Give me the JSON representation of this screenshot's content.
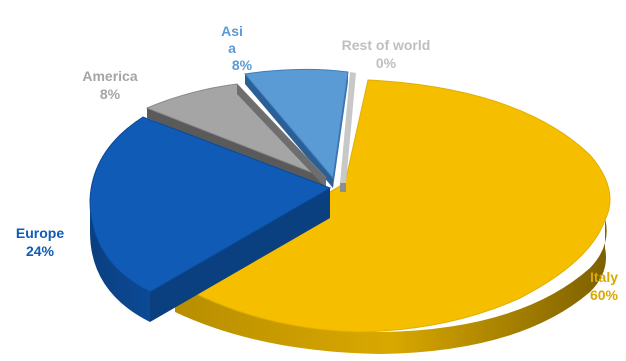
{
  "chart_data": {
    "type": "pie",
    "style": "3d-exploded",
    "title": "",
    "legend": "none",
    "slices": [
      {
        "label": "Italy",
        "value": 60,
        "pct": "60%",
        "color": "#F5BF00",
        "label_color": "#D9A800"
      },
      {
        "label": "Rest of world",
        "value": 0,
        "pct": "0%",
        "color": "#BFBFBF",
        "label_color": "#BFBFBF"
      },
      {
        "label": "Asia",
        "label_lines": [
          "Asi",
          "a"
        ],
        "value": 8,
        "pct": "8%",
        "color": "#5B9BD5",
        "label_color": "#5B9BD5"
      },
      {
        "label": "America",
        "value": 8,
        "pct": "8%",
        "color": "#A5A5A5",
        "label_color": "#A5A5A5"
      },
      {
        "label": "Europe",
        "value": 24,
        "pct": "24%",
        "color": "#0F5BB5",
        "label_color": "#0F5BB5"
      }
    ]
  }
}
